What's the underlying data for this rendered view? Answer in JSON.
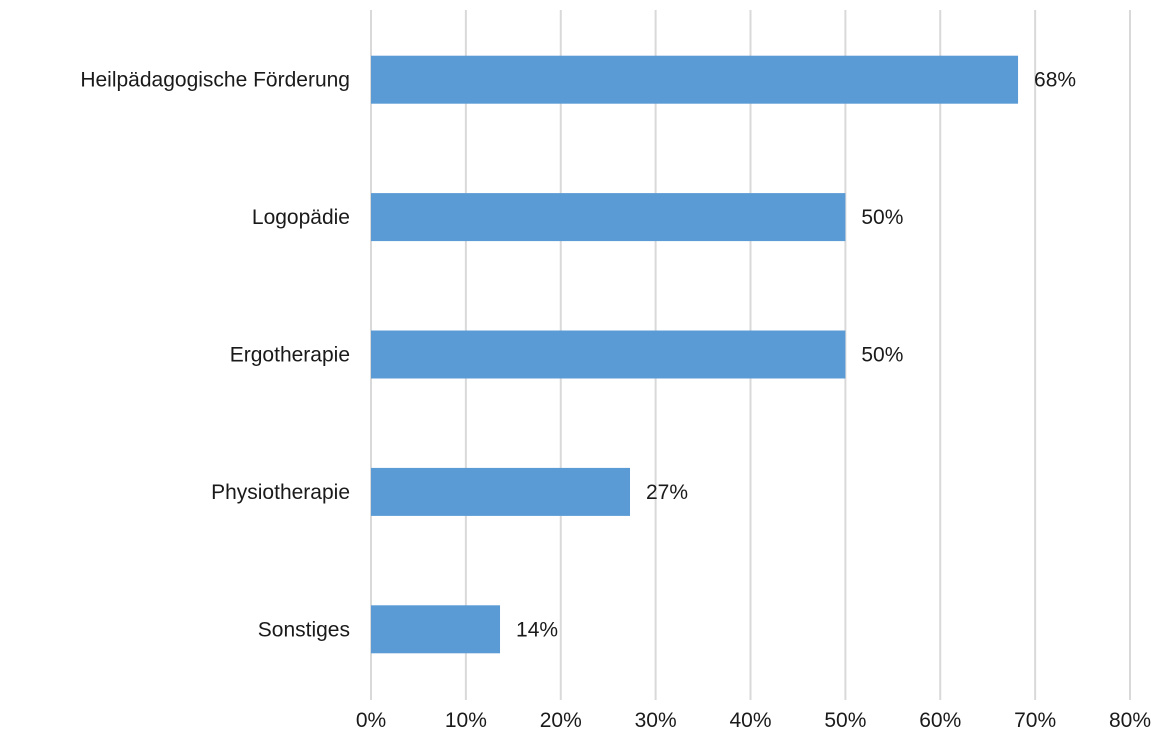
{
  "chart_data": {
    "type": "bar",
    "orientation": "horizontal",
    "categories": [
      "Heilpädagogische Förderung",
      "Logopädie",
      "Ergotherapie",
      "Physiotherapie",
      "Sonstiges"
    ],
    "values": [
      68.2,
      50,
      50,
      27.3,
      13.6
    ],
    "data_labels": [
      "68%",
      "50%",
      "50%",
      "27%",
      "14%"
    ],
    "xlim": [
      0,
      80
    ],
    "x_ticks": [
      0,
      10,
      20,
      30,
      40,
      50,
      60,
      70,
      80
    ],
    "x_tick_labels": [
      "0%",
      "10%",
      "20%",
      "30%",
      "40%",
      "50%",
      "60%",
      "70%",
      "80%"
    ],
    "bar_color": "#5b9bd5",
    "grid": true,
    "legend": "none"
  }
}
